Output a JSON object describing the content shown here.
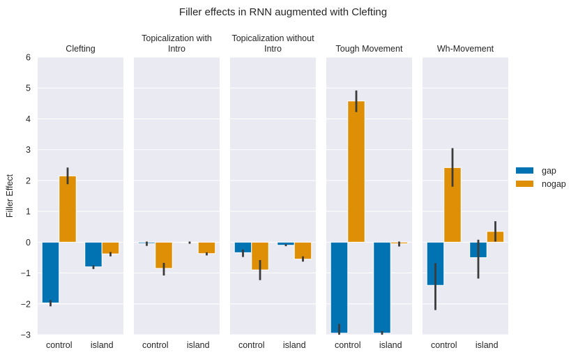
{
  "chart_data": {
    "type": "bar",
    "title": "Filler effects in RNN augmented with Clefting",
    "ylabel": "Filler Effect",
    "xlabel": "",
    "ylim": [
      -3,
      6
    ],
    "yticks": [
      -3,
      -2,
      -1,
      0,
      1,
      2,
      3,
      4,
      5,
      6
    ],
    "categories": [
      "control",
      "island"
    ],
    "grid": true,
    "legend_placement": "right",
    "colors": {
      "gap": "#0173b2",
      "nogap": "#de8f05",
      "background": "#eaeaf2",
      "errorbar": "#3b3b3b"
    },
    "legend": [
      {
        "key": "gap",
        "label": "gap"
      },
      {
        "key": "nogap",
        "label": "nogap"
      }
    ],
    "facets": [
      {
        "title": [
          "Clefting"
        ],
        "series": [
          {
            "name": "gap",
            "values": [
              -1.97,
              -0.8
            ],
            "ci": [
              [
                -2.08,
                -1.88
              ],
              [
                -0.87,
                -0.75
              ]
            ]
          },
          {
            "name": "nogap",
            "values": [
              2.15,
              -0.38
            ],
            "ci": [
              [
                1.88,
                2.42
              ],
              [
                -0.46,
                -0.32
              ]
            ]
          }
        ]
      },
      {
        "title": [
          "Topicalization with",
          "Intro"
        ],
        "series": [
          {
            "name": "gap",
            "values": [
              -0.04,
              -0.01
            ],
            "ci": [
              [
                -0.12,
                0.02
              ],
              [
                -0.05,
                0.02
              ]
            ]
          },
          {
            "name": "nogap",
            "values": [
              -0.85,
              -0.37
            ],
            "ci": [
              [
                -1.08,
                -0.67
              ],
              [
                -0.43,
                -0.33
              ]
            ]
          }
        ]
      },
      {
        "title": [
          "Topicalization without",
          "Intro"
        ],
        "series": [
          {
            "name": "gap",
            "values": [
              -0.34,
              -0.1
            ],
            "ci": [
              [
                -0.48,
                -0.24
              ],
              [
                -0.13,
                -0.06
              ]
            ]
          },
          {
            "name": "nogap",
            "values": [
              -0.9,
              -0.55
            ],
            "ci": [
              [
                -1.23,
                -0.58
              ],
              [
                -0.63,
                -0.46
              ]
            ]
          }
        ]
      },
      {
        "title": [
          "Tough Movement"
        ],
        "series": [
          {
            "name": "gap",
            "values": [
              -2.95,
              -2.95
            ],
            "ci": [
              [
                -3.0,
                -2.65
              ],
              [
                -3.0,
                -2.88
              ]
            ]
          },
          {
            "name": "nogap",
            "values": [
              4.58,
              -0.05
            ],
            "ci": [
              [
                4.22,
                4.92
              ],
              [
                -0.14,
                0.02
              ]
            ]
          }
        ]
      },
      {
        "title": [
          "Wh-Movement"
        ],
        "series": [
          {
            "name": "gap",
            "values": [
              -1.4,
              -0.5
            ],
            "ci": [
              [
                -2.2,
                -0.68
              ],
              [
                -1.18,
                0.08
              ]
            ]
          },
          {
            "name": "nogap",
            "values": [
              2.42,
              0.35
            ],
            "ci": [
              [
                1.8,
                3.05
              ],
              [
                0.02,
                0.68
              ]
            ]
          }
        ]
      }
    ]
  }
}
